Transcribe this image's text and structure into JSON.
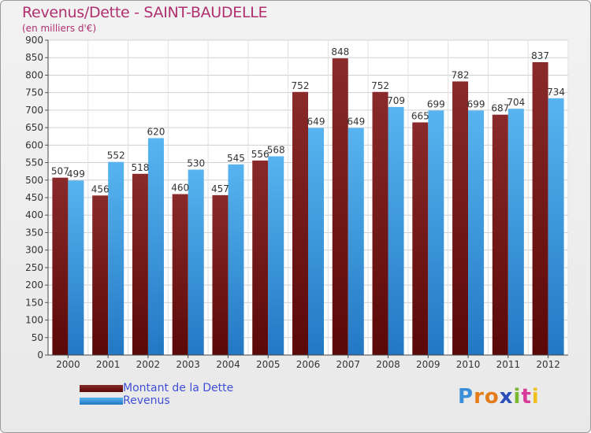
{
  "header": {
    "title": "Revenus/Dette - SAINT-BAUDELLE",
    "subtitle": "(en milliers d'€)"
  },
  "legend": {
    "items": [
      {
        "label": "Montant de la Dette",
        "color": "#7a1a1a"
      },
      {
        "label": "Revenus",
        "color": "#3d9fe3"
      }
    ]
  },
  "logo": {
    "letters": [
      "P",
      "r",
      "o",
      "x",
      "i",
      "t",
      "i"
    ],
    "colors": [
      "#3a8fd8",
      "#e57c1a",
      "#e57c1a",
      "#2a4fb8",
      "#79b72c",
      "#d93a9a",
      "#f0c020"
    ]
  },
  "chart_data": {
    "type": "bar",
    "categories": [
      "2000",
      "2001",
      "2002",
      "2003",
      "2004",
      "2005",
      "2006",
      "2007",
      "2008",
      "2009",
      "2010",
      "2011",
      "2012"
    ],
    "series": [
      {
        "name": "Montant de la Dette",
        "color": "#7a1a1a",
        "values": [
          507,
          456,
          518,
          460,
          457,
          556,
          752,
          848,
          752,
          665,
          782,
          687,
          837
        ]
      },
      {
        "name": "Revenus",
        "color": "#3d9fe3",
        "values": [
          499,
          552,
          620,
          530,
          545,
          568,
          649,
          649,
          709,
          699,
          699,
          704,
          734
        ]
      }
    ],
    "ylim": [
      0,
      900
    ],
    "yticks": [
      0,
      50,
      100,
      150,
      200,
      250,
      300,
      350,
      400,
      450,
      500,
      550,
      600,
      650,
      700,
      750,
      800,
      850,
      900
    ],
    "grid": true
  }
}
